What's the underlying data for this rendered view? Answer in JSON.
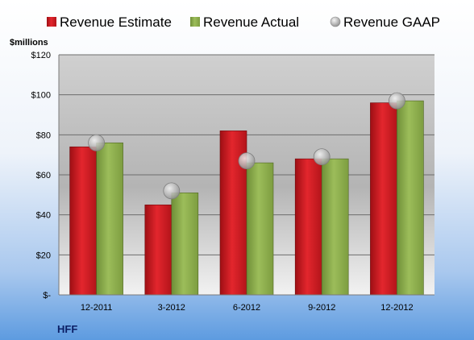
{
  "chart_data": {
    "type": "bar",
    "title": "",
    "company": "HFF",
    "ylabel": "$millions",
    "categories": [
      "12-2011",
      "3-2012",
      "6-2012",
      "9-2012",
      "12-2012"
    ],
    "series": [
      {
        "name": "Revenue Estimate",
        "type": "bar",
        "color": "#d4141c",
        "values": [
          74,
          45,
          82,
          68,
          96
        ]
      },
      {
        "name": "Revenue Actual",
        "type": "bar",
        "color": "#8bb04a",
        "values": [
          76,
          51,
          66,
          68,
          97
        ]
      },
      {
        "name": "Revenue GAAP",
        "type": "marker",
        "color": "#b8b8b8",
        "values": [
          76,
          52,
          67,
          69,
          97
        ]
      }
    ],
    "ylim": [
      0,
      120
    ],
    "yticks": [
      {
        "value": 0,
        "label": "$-"
      },
      {
        "value": 20,
        "label": "$20"
      },
      {
        "value": 40,
        "label": "$40"
      },
      {
        "value": 60,
        "label": "$60"
      },
      {
        "value": 80,
        "label": "$80"
      },
      {
        "value": 100,
        "label": "$100"
      },
      {
        "value": 120,
        "label": "$120"
      }
    ],
    "grid": true,
    "legend": "top"
  }
}
